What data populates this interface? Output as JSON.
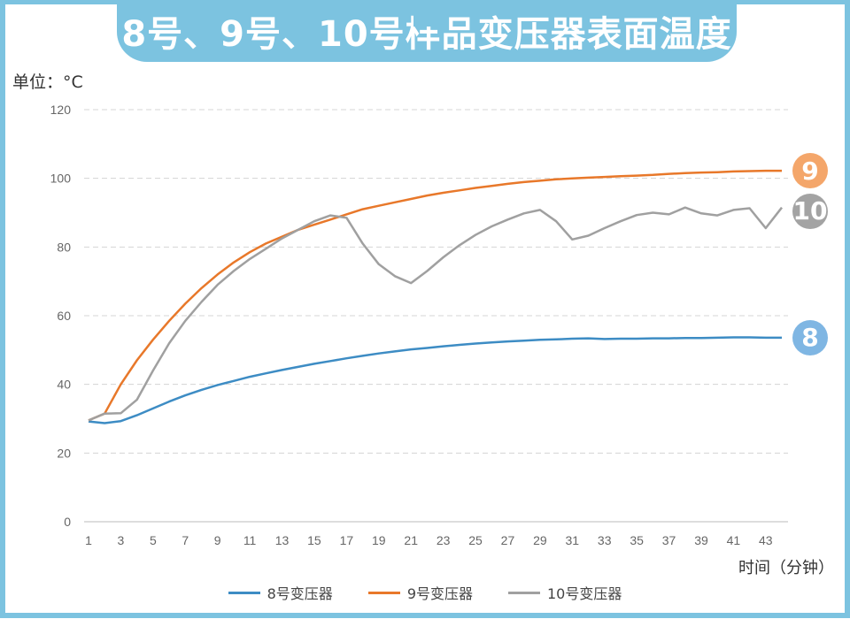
{
  "title": "8号、9号、10号样品变压器表面温度",
  "unit_label": "单位：°C",
  "chart_data": {
    "type": "line",
    "title": "8号、9号、10号样品变压器表面温度",
    "xlabel": "时间（分钟）",
    "ylabel": "单位：°C",
    "ylim": [
      0,
      120
    ],
    "yticks": [
      0,
      20,
      40,
      60,
      80,
      100,
      120
    ],
    "xticks": [
      1,
      3,
      5,
      7,
      9,
      11,
      13,
      15,
      17,
      19,
      21,
      23,
      25,
      27,
      29,
      31,
      33,
      35,
      37,
      39,
      41,
      43
    ],
    "grid": true,
    "legend_position": "bottom",
    "x": [
      1,
      2,
      3,
      4,
      5,
      6,
      7,
      8,
      9,
      10,
      11,
      12,
      13,
      14,
      15,
      16,
      17,
      18,
      19,
      20,
      21,
      22,
      23,
      24,
      25,
      26,
      27,
      28,
      29,
      30,
      31,
      32,
      33,
      34,
      35,
      36,
      37,
      38,
      39,
      40,
      41,
      42,
      43,
      44
    ],
    "series": [
      {
        "name": "8号变压器",
        "badge": "8",
        "color": "#3d8cc4",
        "badge_color": "#7fb6e3",
        "values": [
          29.2,
          28.7,
          29.3,
          31,
          33,
          35,
          36.8,
          38.4,
          39.8,
          41,
          42.2,
          43.2,
          44.2,
          45.1,
          46,
          46.8,
          47.6,
          48.3,
          49,
          49.6,
          50.2,
          50.6,
          51.1,
          51.5,
          51.9,
          52.2,
          52.5,
          52.7,
          53,
          53.1,
          53.3,
          53.4,
          53.2,
          53.3,
          53.3,
          53.4,
          53.4,
          53.5,
          53.5,
          53.6,
          53.7,
          53.7,
          53.6,
          53.6
        ]
      },
      {
        "name": "9号变压器",
        "badge": "9",
        "color": "#e8782a",
        "badge_color": "#f4a66a",
        "values": [
          29.5,
          31.5,
          40,
          47,
          53,
          58.5,
          63.5,
          68,
          72,
          75.5,
          78.5,
          81,
          83,
          85,
          86.5,
          88,
          89.5,
          91,
          92,
          93,
          94,
          95,
          95.8,
          96.5,
          97.2,
          97.8,
          98.4,
          98.9,
          99.3,
          99.7,
          100,
          100.2,
          100.4,
          100.6,
          100.8,
          101,
          101.3,
          101.5,
          101.7,
          101.8,
          102,
          102.1,
          102.2,
          102.2
        ]
      },
      {
        "name": "10号变压器",
        "badge": "10",
        "color": "#a0a0a0",
        "badge_color": "#a3a3a3",
        "values": [
          29.5,
          31.5,
          31.6,
          35.5,
          44,
          52,
          58.5,
          64,
          69,
          73,
          76.5,
          79.5,
          82.5,
          85,
          87.5,
          89.2,
          88.5,
          81,
          75,
          71.5,
          69.5,
          73,
          77,
          80.5,
          83.5,
          86,
          88,
          89.8,
          90.8,
          87.5,
          82.2,
          83.3,
          85.5,
          87.5,
          89.3,
          90,
          89.5,
          91.5,
          89.8,
          89.2,
          90.8,
          91.3,
          85.5,
          91.5
        ]
      }
    ]
  }
}
